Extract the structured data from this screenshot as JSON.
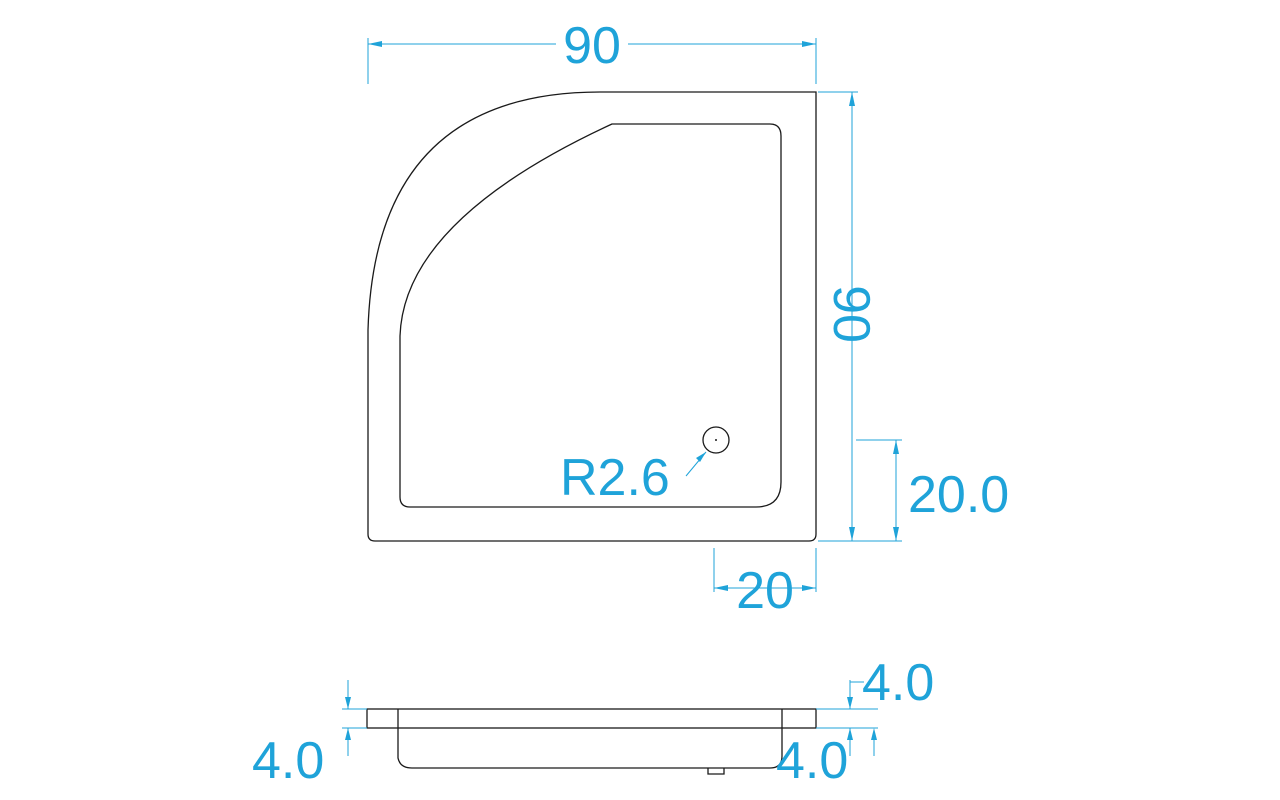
{
  "plan_view": {
    "width_label": "90",
    "depth_label": "90",
    "drain_radius_label": "R2.6",
    "drain_offset_x_label": "20",
    "drain_offset_y_label": "20.0"
  },
  "side_view": {
    "rim_left_label": "4.0",
    "rim_right_label": "4.0",
    "base_right_label": "4.0"
  },
  "colors": {
    "outline": "#1a1a1a",
    "dimension": "#1fa3d9"
  }
}
